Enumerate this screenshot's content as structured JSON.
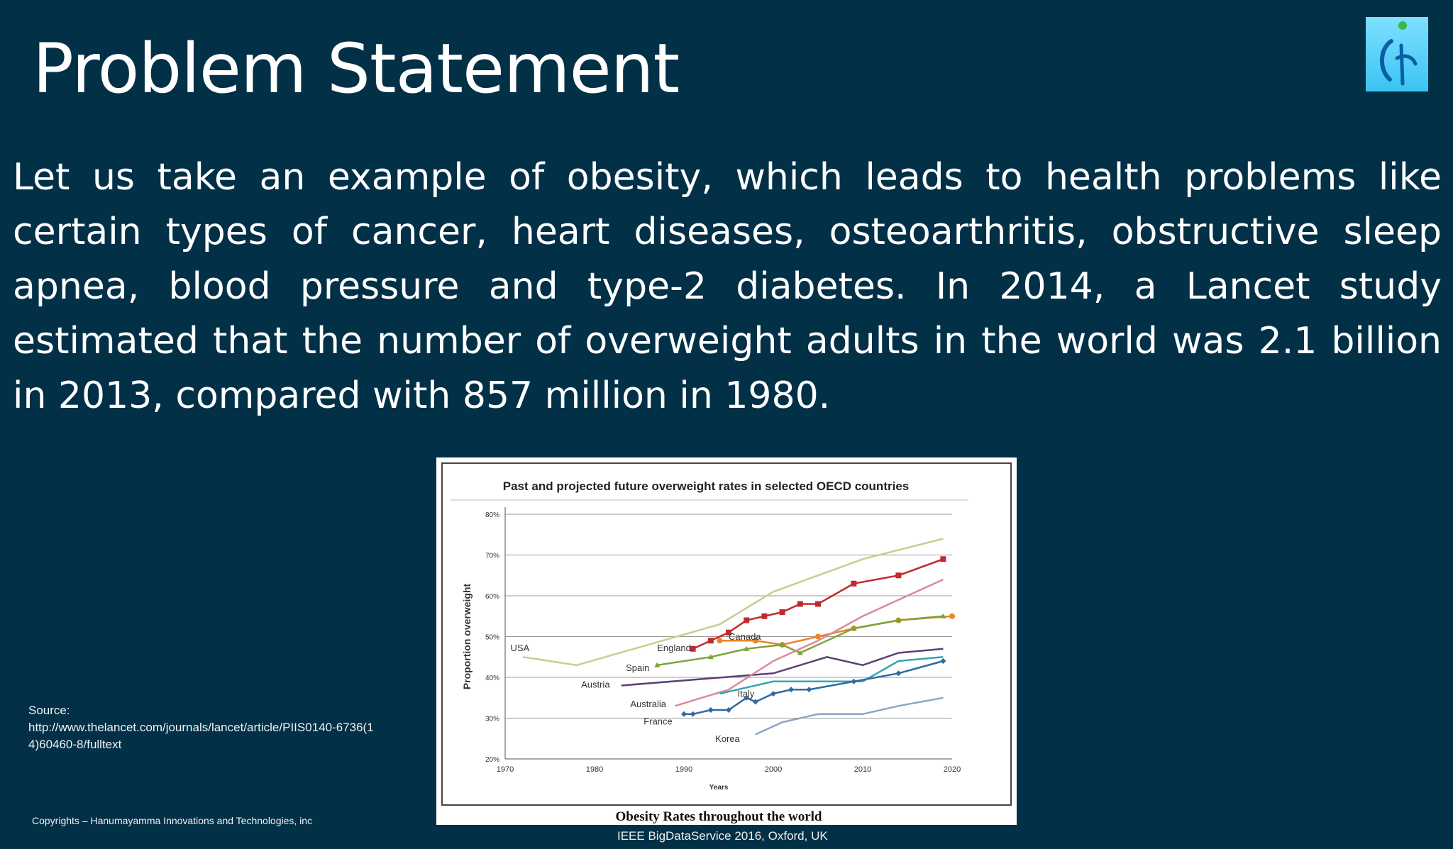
{
  "slide": {
    "title": "Problem Statement",
    "body": "Let us take an example of obesity, which leads to health problems like certain types of cancer, heart diseases, osteoarthritis, obstructive sleep apnea, blood pressure and type-2 diabetes. In 2014, a Lancet study estimated that the number of overweight adults in the world was 2.1 billion in 2013, compared with 857 million in 1980.",
    "source_label": "Source:",
    "source_url": "http://www.thelancet.com/journals/lancet/article/PIIS0140-6736(14)60460-8/fulltext",
    "copyright": "Copyrights – Hanumayamma Innovations and Technologies, inc",
    "conference": "IEEE BigDataService 2016, Oxford, UK",
    "logo_icon": "hanumayamma-logo-icon",
    "colors": {
      "background": "#023047",
      "text": "#ffffff",
      "logo": "#39c4f3"
    }
  },
  "chart_data": {
    "type": "line",
    "title": "Past and projected future overweight rates in selected OECD countries",
    "caption": "Obesity Rates throughout the world",
    "xlabel": "Years",
    "ylabel": "Proportion overweight",
    "xlim": [
      1970,
      2020
    ],
    "ylim": [
      20,
      80
    ],
    "x_ticks": [
      1970,
      1980,
      1990,
      2000,
      2010,
      2020
    ],
    "y_ticks": [
      20,
      30,
      40,
      50,
      60,
      70,
      80
    ],
    "y_tick_labels": [
      "20%",
      "30%",
      "40%",
      "50%",
      "60%",
      "70%",
      "80%"
    ],
    "grid": true,
    "series": [
      {
        "name": "USA",
        "color": "#c3d08f",
        "marker": "none",
        "x": [
          1972,
          1978,
          1994,
          2000,
          2005,
          2010,
          2019
        ],
        "y": [
          45,
          43,
          53,
          61,
          65,
          69,
          74
        ]
      },
      {
        "name": "England",
        "color": "#c0292f",
        "marker": "square",
        "x": [
          1991,
          1993,
          1995,
          1997,
          1999,
          2001,
          2003,
          2005,
          2009,
          2014,
          2019
        ],
        "y": [
          47,
          49,
          51,
          54,
          55,
          56,
          58,
          58,
          63,
          65,
          69
        ]
      },
      {
        "name": "Canada",
        "color": "#e8862a",
        "marker": "circle",
        "x": [
          1994,
          1998,
          2001,
          2005,
          2009,
          2014,
          2020
        ],
        "y": [
          49,
          49,
          48,
          50,
          52,
          54,
          55
        ]
      },
      {
        "name": "Spain",
        "color": "#7ea23a",
        "marker": "triangle",
        "x": [
          1987,
          1993,
          1997,
          2001,
          2003,
          2009,
          2014,
          2019
        ],
        "y": [
          43,
          45,
          47,
          48,
          46,
          52,
          54,
          55
        ]
      },
      {
        "name": "Austria",
        "color": "#5b3f7a",
        "marker": "none",
        "x": [
          1983,
          2000,
          2006,
          2010,
          2014,
          2019
        ],
        "y": [
          38,
          41,
          45,
          43,
          46,
          47
        ]
      },
      {
        "name": "Australia",
        "color": "#d98b9b",
        "marker": "none",
        "x": [
          1989,
          1995,
          2000,
          2005,
          2010,
          2019
        ],
        "y": [
          33,
          37,
          44,
          49,
          55,
          64
        ]
      },
      {
        "name": "Italy",
        "color": "#33a5b0",
        "marker": "none",
        "x": [
          1994,
          2000,
          2005,
          2010,
          2014,
          2019
        ],
        "y": [
          36,
          39,
          39,
          39,
          44,
          45
        ]
      },
      {
        "name": "France",
        "color": "#2f6aa0",
        "marker": "diamond",
        "x": [
          1990,
          1991,
          1993,
          1995,
          1997,
          1998,
          2000,
          2002,
          2004,
          2009,
          2014,
          2019
        ],
        "y": [
          31,
          31,
          32,
          32,
          35,
          34,
          36,
          37,
          37,
          39,
          41,
          44
        ]
      },
      {
        "name": "Korea",
        "color": "#8fa3c6",
        "marker": "none",
        "x": [
          1998,
          2001,
          2005,
          2010,
          2014,
          2019
        ],
        "y": [
          26,
          29,
          31,
          31,
          33,
          35
        ]
      }
    ]
  }
}
